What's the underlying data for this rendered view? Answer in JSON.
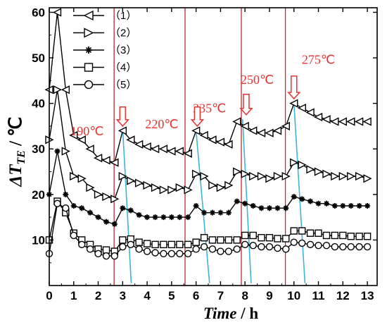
{
  "chart_data": {
    "type": "line",
    "title": "",
    "xlabel_italic": "Time",
    "xlabel_unit": " / h",
    "ylabel_delta": "Δ",
    "ylabel_T": "T",
    "ylabel_sub": "TE",
    "ylabel_unit": " / ℃",
    "xlim": [
      0,
      13.4
    ],
    "ylim": [
      0,
      61
    ],
    "xticks": [
      0,
      1,
      2,
      3,
      4,
      5,
      6,
      7,
      8,
      9,
      10,
      11,
      12,
      13
    ],
    "yticks": [
      10,
      20,
      30,
      40,
      50,
      60
    ],
    "grid": false,
    "legend": "top-left",
    "colors": {
      "marker": "#000000",
      "annotation": "#e8322f",
      "vline": "#c0282f",
      "trend": "#3ab6d8"
    },
    "series": [
      {
        "name": "（1）",
        "marker": "triangle-left",
        "x": [
          0.0,
          0.33,
          0.67,
          1.0,
          1.33,
          1.67,
          2.0,
          2.33,
          2.67,
          3.0,
          3.33,
          3.67,
          4.0,
          4.33,
          4.67,
          5.0,
          5.33,
          5.67,
          6.0,
          6.33,
          6.67,
          7.0,
          7.33,
          7.67,
          8.0,
          8.33,
          8.67,
          9.0,
          9.33,
          9.67,
          10.0,
          10.33,
          10.67,
          11.0,
          11.33,
          11.67,
          12.0,
          12.33,
          12.67,
          13.0
        ],
        "y": [
          43.0,
          60.0,
          43.0,
          33.0,
          32.0,
          30.0,
          28.0,
          27.5,
          27.0,
          34.0,
          32.0,
          31.0,
          30.5,
          30.0,
          30.0,
          29.5,
          29.5,
          29.0,
          34.0,
          33.0,
          32.0,
          31.5,
          31.0,
          36.0,
          35.0,
          34.0,
          33.5,
          33.5,
          34.0,
          35.0,
          40.0,
          39.0,
          38.0,
          37.0,
          36.5,
          36.0,
          36.0,
          36.0,
          36.0,
          36.0
        ]
      },
      {
        "name": "（2）",
        "marker": "triangle-right",
        "x": [
          0.0,
          0.33,
          0.67,
          1.0,
          1.33,
          1.67,
          2.0,
          2.33,
          2.67,
          3.0,
          3.33,
          3.67,
          4.0,
          4.33,
          4.67,
          5.0,
          5.33,
          5.67,
          6.0,
          6.33,
          6.67,
          7.0,
          7.33,
          7.67,
          8.0,
          8.33,
          8.67,
          9.0,
          9.33,
          9.67,
          10.0,
          10.33,
          10.67,
          11.0,
          11.33,
          11.67,
          12.0,
          12.33,
          12.67,
          13.0
        ],
        "y": [
          32.0,
          43.0,
          29.5,
          24.0,
          23.5,
          21.5,
          20.0,
          19.5,
          19.0,
          24.0,
          23.0,
          22.5,
          22.0,
          21.5,
          21.0,
          21.0,
          21.5,
          21.0,
          24.5,
          24.0,
          22.0,
          21.5,
          22.0,
          25.0,
          24.5,
          24.0,
          24.0,
          23.5,
          24.0,
          24.0,
          27.0,
          26.5,
          25.5,
          25.0,
          24.5,
          24.0,
          24.0,
          24.0,
          24.0,
          23.5
        ]
      },
      {
        "name": "（3）",
        "marker": "star",
        "x": [
          0.0,
          0.33,
          0.67,
          1.0,
          1.33,
          1.67,
          2.0,
          2.33,
          2.67,
          3.0,
          3.33,
          3.67,
          4.0,
          4.33,
          4.67,
          5.0,
          5.33,
          5.67,
          6.0,
          6.33,
          6.67,
          7.0,
          7.33,
          7.67,
          8.0,
          8.33,
          8.67,
          9.0,
          9.33,
          9.67,
          10.0,
          10.33,
          10.67,
          11.0,
          11.33,
          11.67,
          12.0,
          12.33,
          12.67,
          13.0
        ],
        "y": [
          20.0,
          29.5,
          20.0,
          17.5,
          17.0,
          16.0,
          15.0,
          14.0,
          13.5,
          17.0,
          16.5,
          15.5,
          15.0,
          15.0,
          15.0,
          15.0,
          15.0,
          15.0,
          17.5,
          16.0,
          16.0,
          16.0,
          16.0,
          18.5,
          18.0,
          17.5,
          17.0,
          17.0,
          17.0,
          17.0,
          19.5,
          19.0,
          18.5,
          18.0,
          18.0,
          17.5,
          17.5,
          17.5,
          17.5,
          17.5
        ]
      },
      {
        "name": "（4）",
        "marker": "square",
        "x": [
          0.0,
          0.33,
          0.67,
          1.0,
          1.33,
          1.67,
          2.0,
          2.33,
          2.67,
          3.0,
          3.33,
          3.67,
          4.0,
          4.33,
          4.67,
          5.0,
          5.33,
          5.67,
          6.0,
          6.33,
          6.67,
          7.0,
          7.33,
          7.67,
          8.0,
          8.33,
          8.67,
          9.0,
          9.33,
          9.67,
          10.0,
          10.33,
          10.67,
          11.0,
          11.33,
          11.67,
          12.0,
          12.33,
          12.67,
          13.0
        ],
        "y": [
          10.0,
          18.5,
          16.0,
          11.5,
          10.0,
          9.0,
          8.0,
          7.8,
          7.5,
          10.0,
          10.2,
          9.5,
          9.2,
          9.0,
          9.0,
          9.0,
          9.0,
          9.0,
          9.5,
          10.5,
          10.0,
          10.0,
          10.0,
          10.0,
          11.0,
          11.0,
          10.5,
          10.5,
          10.3,
          10.3,
          12.0,
          12.0,
          11.5,
          11.5,
          11.0,
          11.0,
          11.0,
          10.8,
          10.8,
          10.8
        ]
      },
      {
        "name": "（5）",
        "marker": "circle",
        "x": [
          0.0,
          0.33,
          0.67,
          1.0,
          1.33,
          1.67,
          2.0,
          2.33,
          2.67,
          3.0,
          3.33,
          3.67,
          4.0,
          4.33,
          4.67,
          5.0,
          5.33,
          5.67,
          6.0,
          6.33,
          6.67,
          7.0,
          7.33,
          7.67,
          8.0,
          8.33,
          8.67,
          9.0,
          9.33,
          9.67,
          10.0,
          10.33,
          10.67,
          11.0,
          11.33,
          11.67,
          12.0,
          12.33,
          12.67,
          13.0
        ],
        "y": [
          7.0,
          18.0,
          17.0,
          11.0,
          9.0,
          8.0,
          7.0,
          6.5,
          6.5,
          8.5,
          9.0,
          8.0,
          7.5,
          7.2,
          7.0,
          7.0,
          7.0,
          7.0,
          8.0,
          8.5,
          8.0,
          7.5,
          7.5,
          8.0,
          9.0,
          8.8,
          8.5,
          8.5,
          8.2,
          8.0,
          9.5,
          9.3,
          9.0,
          8.8,
          8.8,
          8.5,
          8.5,
          8.5,
          8.5,
          8.5
        ]
      }
    ],
    "vertical_lines_x": [
      2.65,
      5.55,
      7.85,
      9.65
    ],
    "trend_lines": [
      {
        "x": [
          3.0,
          3.35
        ],
        "y": [
          34.5,
          0.5
        ]
      },
      {
        "x": [
          6.0,
          6.55
        ],
        "y": [
          34.0,
          0.5
        ]
      },
      {
        "x": [
          7.9,
          8.25
        ],
        "y": [
          36.5,
          0.5
        ]
      },
      {
        "x": [
          10.0,
          10.45
        ],
        "y": [
          40.0,
          0.5
        ]
      }
    ],
    "annotations": [
      {
        "text": "190℃",
        "x": 1.55,
        "y": 33.0
      },
      {
        "text": "220℃",
        "x": 4.6,
        "y": 34.5
      },
      {
        "text": "235℃",
        "x": 6.55,
        "y": 38.0
      },
      {
        "text": "250℃",
        "x": 8.5,
        "y": 44.3
      },
      {
        "text": "275℃",
        "x": 11.0,
        "y": 48.7
      }
    ],
    "arrows": [
      {
        "x": 3.0,
        "y_top": 39.2,
        "y_tip": 35.0
      },
      {
        "x": 6.05,
        "y_top": 39.2,
        "y_tip": 35.0
      },
      {
        "x": 8.05,
        "y_top": 42.0,
        "y_tip": 37.5
      },
      {
        "x": 10.0,
        "y_top": 46.0,
        "y_tip": 41.0
      }
    ]
  }
}
